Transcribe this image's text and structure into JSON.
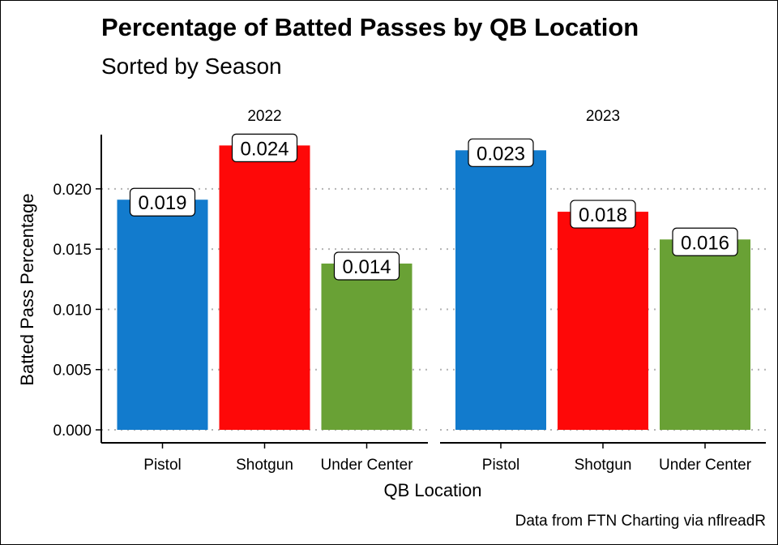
{
  "chart_data": {
    "type": "bar",
    "title": "Percentage of Batted Passes by QB Location",
    "subtitle": "Sorted by Season",
    "xlabel": "QB Location",
    "ylabel": "Batted Pass Percentage",
    "caption": "Data from FTN Charting via nflreadR",
    "categories": [
      "Pistol",
      "Shotgun",
      "Under Center"
    ],
    "category_colors": [
      "#127bcd",
      "#fe0808",
      "#69a135"
    ],
    "ylim": [
      0,
      0.0245
    ],
    "yticks": [
      0.0,
      0.005,
      0.01,
      0.015,
      0.02
    ],
    "ytick_labels": [
      "0.000",
      "0.005",
      "0.010",
      "0.015",
      "0.020"
    ],
    "grid": "horizontal dotted",
    "legend": "none",
    "facets": [
      {
        "label": "2022",
        "values": [
          0.0191,
          0.0236,
          0.0138
        ],
        "labels": [
          "0.019",
          "0.024",
          "0.014"
        ]
      },
      {
        "label": "2023",
        "values": [
          0.0232,
          0.0181,
          0.0158
        ],
        "labels": [
          "0.023",
          "0.018",
          "0.016"
        ]
      }
    ]
  }
}
